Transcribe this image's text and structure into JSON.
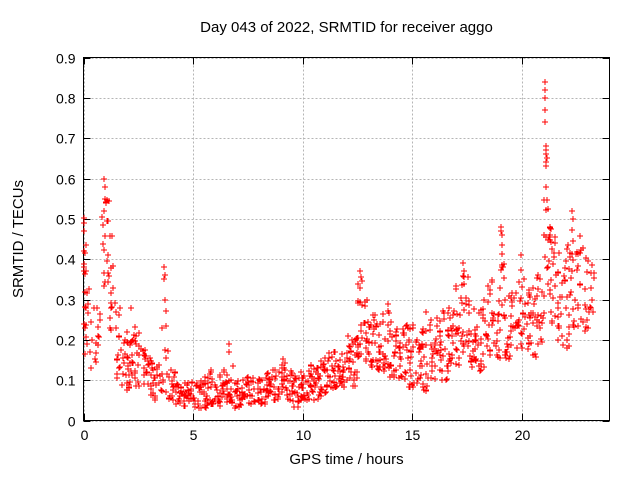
{
  "chart_data": {
    "type": "scatter",
    "title": "Day 043 of 2022, SRMTID for receiver aggo",
    "xlabel": "GPS time / hours",
    "ylabel": "SRMTID / TECUs",
    "xlim": [
      0,
      24
    ],
    "ylim": [
      0,
      0.9
    ],
    "xticks": [
      0,
      5,
      10,
      15,
      20
    ],
    "yticks": [
      0,
      0.1,
      0.2,
      0.3,
      0.4,
      0.5,
      0.6,
      0.7,
      0.8,
      0.9
    ],
    "grid": true,
    "legend": "none",
    "marker": "plus",
    "colors": {
      "points": "#ff0000",
      "grid": "#b5b5b5",
      "axis": "#000000",
      "background": "#ffffff",
      "text": "#000000"
    },
    "seed": 42,
    "x_data_start": 0.0,
    "x_data_end": 23.3,
    "y_max_observed": 0.84,
    "series": [
      {
        "name": "SRMTID",
        "representation": "density-bands",
        "bands_format": [
          "t_start_hours",
          "t_end_hours",
          "point_count",
          "y_min_TECUs",
          "y_max_TECUs",
          "skew_toward_min"
        ],
        "bands": [
          [
            0.0,
            0.12,
            16,
            0.22,
            0.54,
            1.0
          ],
          [
            0.05,
            0.3,
            12,
            0.16,
            0.36,
            1.2
          ],
          [
            0.3,
            0.6,
            8,
            0.13,
            0.3,
            1.2
          ],
          [
            0.6,
            0.85,
            7,
            0.13,
            0.28,
            1.2
          ],
          [
            0.85,
            1.15,
            20,
            0.3,
            0.57,
            0.9
          ],
          [
            1.15,
            1.45,
            13,
            0.22,
            0.46,
            1.1
          ],
          [
            1.45,
            1.75,
            14,
            0.1,
            0.3,
            1.2
          ],
          [
            1.75,
            2.05,
            18,
            0.07,
            0.22,
            1.2
          ],
          [
            2.05,
            2.35,
            18,
            0.08,
            0.26,
            1.3
          ],
          [
            2.35,
            2.65,
            16,
            0.08,
            0.22,
            1.3
          ],
          [
            2.65,
            2.95,
            16,
            0.07,
            0.18,
            1.3
          ],
          [
            2.95,
            3.25,
            14,
            0.06,
            0.16,
            1.3
          ],
          [
            3.25,
            3.55,
            12,
            0.05,
            0.15,
            1.3
          ],
          [
            3.55,
            3.85,
            12,
            0.07,
            0.3,
            1.5
          ],
          [
            3.85,
            4.15,
            14,
            0.05,
            0.13,
            1.3
          ],
          [
            4.15,
            4.45,
            14,
            0.04,
            0.12,
            1.3
          ],
          [
            4.45,
            4.75,
            15,
            0.035,
            0.11,
            1.3
          ],
          [
            4.75,
            5.05,
            15,
            0.03,
            0.1,
            1.3
          ],
          [
            5.05,
            5.35,
            15,
            0.03,
            0.1,
            1.3
          ],
          [
            5.35,
            5.65,
            15,
            0.03,
            0.11,
            1.3
          ],
          [
            5.65,
            5.95,
            15,
            0.04,
            0.14,
            1.4
          ],
          [
            5.95,
            6.25,
            15,
            0.035,
            0.12,
            1.4
          ],
          [
            6.25,
            6.55,
            15,
            0.04,
            0.14,
            1.4
          ],
          [
            6.55,
            6.85,
            15,
            0.04,
            0.16,
            1.5
          ],
          [
            6.85,
            7.15,
            15,
            0.03,
            0.1,
            1.3
          ],
          [
            7.15,
            7.45,
            15,
            0.035,
            0.1,
            1.3
          ],
          [
            7.45,
            7.75,
            15,
            0.04,
            0.11,
            1.3
          ],
          [
            7.75,
            8.05,
            15,
            0.04,
            0.11,
            1.3
          ],
          [
            8.05,
            8.35,
            15,
            0.04,
            0.11,
            1.3
          ],
          [
            8.35,
            8.65,
            15,
            0.05,
            0.12,
            1.3
          ],
          [
            8.65,
            8.95,
            15,
            0.05,
            0.13,
            1.3
          ],
          [
            8.95,
            9.25,
            16,
            0.06,
            0.155,
            1.3
          ],
          [
            9.25,
            9.55,
            16,
            0.05,
            0.14,
            1.3
          ],
          [
            9.55,
            9.85,
            15,
            0.03,
            0.11,
            1.2
          ],
          [
            9.85,
            10.15,
            16,
            0.05,
            0.13,
            1.3
          ],
          [
            10.15,
            10.45,
            16,
            0.05,
            0.14,
            1.3
          ],
          [
            10.45,
            10.75,
            16,
            0.05,
            0.13,
            1.3
          ],
          [
            10.75,
            11.05,
            16,
            0.06,
            0.16,
            1.3
          ],
          [
            11.05,
            11.35,
            16,
            0.07,
            0.17,
            1.3
          ],
          [
            11.35,
            11.65,
            16,
            0.08,
            0.18,
            1.3
          ],
          [
            11.65,
            11.95,
            16,
            0.08,
            0.19,
            1.3
          ],
          [
            11.95,
            12.25,
            16,
            0.09,
            0.21,
            1.2
          ],
          [
            12.25,
            12.5,
            14,
            0.08,
            0.23,
            1.2
          ],
          [
            12.5,
            12.8,
            18,
            0.15,
            0.34,
            1.0
          ],
          [
            12.8,
            13.05,
            16,
            0.14,
            0.3,
            1.1
          ],
          [
            13.05,
            13.35,
            16,
            0.13,
            0.27,
            1.2
          ],
          [
            13.35,
            13.65,
            16,
            0.12,
            0.25,
            1.2
          ],
          [
            13.65,
            13.95,
            16,
            0.12,
            0.28,
            1.2
          ],
          [
            13.95,
            14.25,
            16,
            0.1,
            0.25,
            1.2
          ],
          [
            14.25,
            14.55,
            16,
            0.09,
            0.23,
            1.2
          ],
          [
            14.55,
            14.85,
            16,
            0.08,
            0.25,
            1.2
          ],
          [
            14.85,
            15.15,
            16,
            0.08,
            0.24,
            1.2
          ],
          [
            15.15,
            15.45,
            16,
            0.09,
            0.22,
            1.2
          ],
          [
            15.45,
            15.75,
            16,
            0.07,
            0.27,
            1.3
          ],
          [
            15.75,
            16.05,
            16,
            0.1,
            0.26,
            1.2
          ],
          [
            16.05,
            16.35,
            16,
            0.12,
            0.28,
            1.2
          ],
          [
            16.35,
            16.65,
            16,
            0.1,
            0.28,
            1.2
          ],
          [
            16.65,
            16.95,
            16,
            0.12,
            0.3,
            1.2
          ],
          [
            16.95,
            17.25,
            17,
            0.13,
            0.34,
            1.1
          ],
          [
            17.25,
            17.55,
            17,
            0.15,
            0.38,
            1.1
          ],
          [
            17.55,
            17.85,
            16,
            0.13,
            0.3,
            1.2
          ],
          [
            17.85,
            18.15,
            16,
            0.12,
            0.28,
            1.2
          ],
          [
            18.15,
            18.45,
            16,
            0.13,
            0.3,
            1.2
          ],
          [
            18.45,
            18.75,
            16,
            0.15,
            0.35,
            1.1
          ],
          [
            18.75,
            19.0,
            14,
            0.15,
            0.37,
            1.1
          ],
          [
            19.0,
            19.2,
            12,
            0.25,
            0.44,
            1.0
          ],
          [
            19.2,
            19.5,
            14,
            0.15,
            0.33,
            1.2
          ],
          [
            19.5,
            19.8,
            15,
            0.15,
            0.32,
            1.2
          ],
          [
            19.8,
            20.1,
            16,
            0.18,
            0.38,
            1.1
          ],
          [
            20.1,
            20.4,
            16,
            0.15,
            0.33,
            1.2
          ],
          [
            20.4,
            20.7,
            15,
            0.15,
            0.33,
            1.2
          ],
          [
            20.7,
            21.0,
            16,
            0.18,
            0.4,
            1.1
          ],
          [
            21.0,
            21.3,
            20,
            0.3,
            0.56,
            1.0
          ],
          [
            21.3,
            21.6,
            16,
            0.24,
            0.48,
            1.1
          ],
          [
            21.6,
            21.9,
            16,
            0.18,
            0.42,
            1.2
          ],
          [
            21.9,
            22.2,
            16,
            0.17,
            0.44,
            1.2
          ],
          [
            22.2,
            22.5,
            16,
            0.22,
            0.5,
            1.1
          ],
          [
            22.5,
            22.8,
            15,
            0.22,
            0.46,
            1.1
          ],
          [
            22.8,
            23.1,
            12,
            0.22,
            0.42,
            1.1
          ],
          [
            23.1,
            23.3,
            6,
            0.25,
            0.4,
            1.1
          ]
        ],
        "notable_points": [
          [
            0.93,
            0.6
          ],
          [
            0.97,
            0.58
          ],
          [
            1.0,
            0.55
          ],
          [
            2.15,
            0.28
          ],
          [
            3.66,
            0.35
          ],
          [
            3.68,
            0.38
          ],
          [
            3.7,
            0.36
          ],
          [
            3.72,
            0.3
          ],
          [
            6.62,
            0.19
          ],
          [
            6.66,
            0.17
          ],
          [
            12.62,
            0.37
          ],
          [
            12.66,
            0.355
          ],
          [
            12.7,
            0.345
          ],
          [
            13.88,
            0.29
          ],
          [
            15.62,
            0.27
          ],
          [
            17.32,
            0.39
          ],
          [
            17.35,
            0.37
          ],
          [
            19.04,
            0.48
          ],
          [
            19.07,
            0.47
          ],
          [
            19.1,
            0.46
          ],
          [
            19.96,
            0.41
          ],
          [
            21.05,
            0.84
          ],
          [
            21.05,
            0.82
          ],
          [
            21.06,
            0.8
          ],
          [
            21.05,
            0.77
          ],
          [
            21.06,
            0.74
          ],
          [
            21.1,
            0.68
          ],
          [
            21.12,
            0.67
          ],
          [
            21.1,
            0.66
          ],
          [
            21.14,
            0.65
          ],
          [
            21.12,
            0.64
          ],
          [
            21.1,
            0.63
          ],
          [
            21.08,
            0.58
          ],
          [
            22.28,
            0.52
          ],
          [
            22.32,
            0.5
          ],
          [
            23.2,
            0.3
          ],
          [
            23.25,
            0.27
          ]
        ]
      }
    ]
  }
}
